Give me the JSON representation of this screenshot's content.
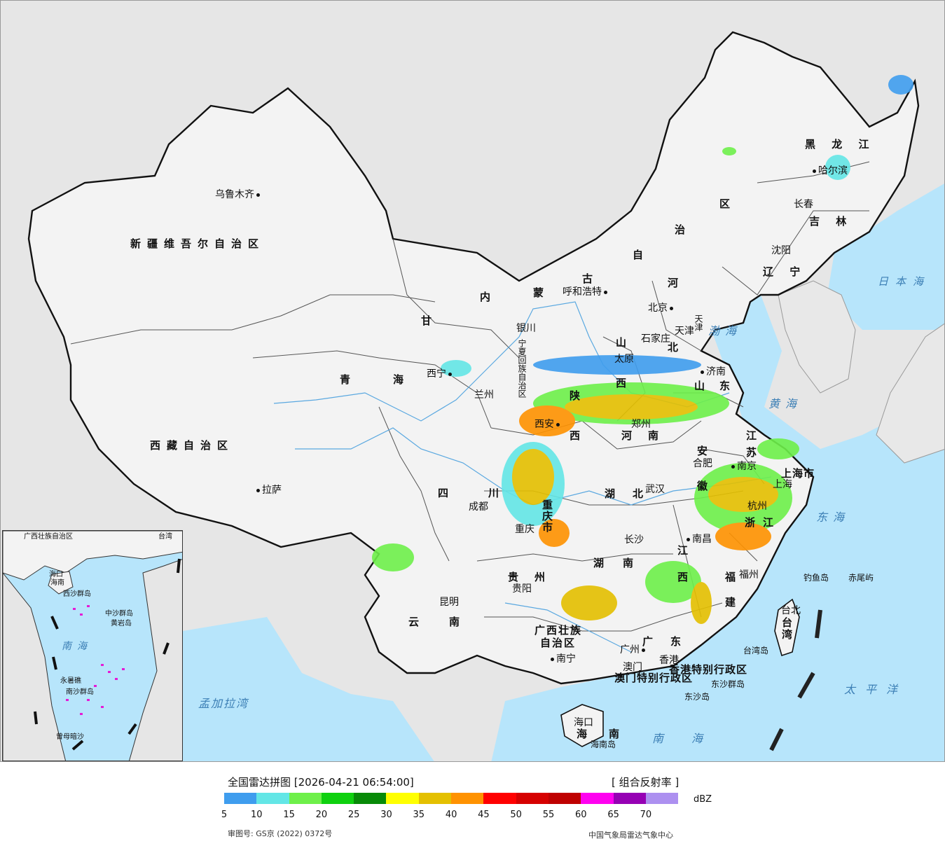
{
  "legend": {
    "title": "全国雷达拼图 [2026-04-21 06:54:00]",
    "product": "[ 组合反射率 ]",
    "unit": "dBZ",
    "ticks": [
      "5",
      "10",
      "15",
      "20",
      "25",
      "30",
      "35",
      "40",
      "45",
      "50",
      "55",
      "60",
      "65",
      "70"
    ],
    "colors": [
      "#3f9dee",
      "#63e6e6",
      "#6ef04a",
      "#0fd10f",
      "#088a08",
      "#ffff00",
      "#e4c000",
      "#ff9200",
      "#ff0000",
      "#d60000",
      "#bf0000",
      "#ff00f0",
      "#9600b4",
      "#ad90f0"
    ],
    "approval": "审图号: GS京 (2022) 0372号",
    "source": "中国气象局雷达气象中心"
  },
  "map": {
    "regions": {
      "xinjiang": "新疆维吾尔自治区",
      "xizang": "西藏自治区",
      "qinghai1": "青",
      "qinghai2": "海",
      "gansu": "甘",
      "sichuan1": "四",
      "sichuan2": "川",
      "yunnan1": "云",
      "yunnan2": "南",
      "guizhou1": "贵",
      "guizhou2": "州",
      "guangxi1": "广西壮族",
      "guangxi2": "自治区",
      "guangdong1": "广",
      "guangdong2": "东",
      "hainan1": "海",
      "hainan2": "南",
      "hunan1": "湖",
      "hunan2": "南",
      "hubei1": "湖",
      "hubei2": "北",
      "jiangxi1": "江",
      "jiangxi2": "西",
      "fujian1": "福",
      "fujian2": "建",
      "zhejiang1": "浙",
      "zhejiang2": "江",
      "anhui1": "安",
      "anhui2": "徽",
      "jiangsu1": "江",
      "jiangsu2": "苏",
      "shandong1": "山",
      "shandong2": "东",
      "henan1": "河",
      "henan2": "南",
      "shanxi1": "山",
      "shanxi2": "西",
      "shaanxi1": "陕",
      "shaanxi2": "西",
      "hebei1": "河",
      "hebei2": "北",
      "neimenggu1": "内",
      "neimenggu2": "蒙",
      "neimenggu3": "古",
      "neimenggu4": "自",
      "neimenggu5": "治",
      "neimenggu6": "区",
      "heilongjiang": "黑 龙 江",
      "jilin": "吉 林",
      "liaoning": "辽 宁",
      "ningxia": "宁夏回族自治区",
      "shanghai": "上海市",
      "chongqing": "重庆市",
      "xianggang": "香港特别行政区",
      "aomen": "澳门特别行政区",
      "taiwan": "台湾",
      "tianjin": "天津"
    },
    "cities": {
      "urumqi": "乌鲁木齐",
      "lhasa": "拉萨",
      "xining": "西宁",
      "lanzhou": "兰州",
      "yinchuan": "银川",
      "hohhot": "呼和浩特",
      "beijing": "北京",
      "tianjin_city": "天津",
      "shijiazhuang": "石家庄",
      "taiyuan": "太原",
      "jinan": "济南",
      "zhengzhou": "郑州",
      "xian": "西安",
      "chengdu": "成都",
      "chongqing_city": "重庆",
      "wuhan": "武汉",
      "hefei": "合肥",
      "nanjing": "南京",
      "shanghai_city": "上海",
      "hangzhou": "杭州",
      "changsha": "长沙",
      "nanchang": "南昌",
      "fuzhou": "福州",
      "guiyang": "贵阳",
      "kunming": "昆明",
      "nanning": "南宁",
      "guangzhou": "广州",
      "aomen_city": "澳门",
      "xianggang_city": "香港",
      "haikou": "海口",
      "taibei": "台北",
      "shenyang": "沈阳",
      "changchun": "长春",
      "harbin": "哈尔滨"
    },
    "islands": {
      "diaoyu": "钓鱼岛",
      "chiwei": "赤尾屿",
      "taiwan_island": "台湾岛",
      "dongsha_islands": "东沙群岛",
      "dongsha_island": "东沙岛",
      "hainan_island": "海南岛"
    },
    "seas": {
      "japan_sea": "日本海",
      "bohai": "渤海",
      "yellow_sea": "黄海",
      "east_sea": "东海",
      "pacific": "太平洋",
      "south_sea": "南海",
      "bengal": "孟加拉湾"
    },
    "inset": {
      "south_sea": "南海",
      "zhongsha": "中沙群岛",
      "huangyan": "黄岩岛",
      "nansha": "南沙群岛",
      "zengmu": "曾母暗沙",
      "xisha": "西沙群岛",
      "yongxing": "永暑礁",
      "taiwan": "台湾",
      "haikou": "海口",
      "hainan": "海南",
      "guangxi": "广西壮族自治区"
    }
  }
}
